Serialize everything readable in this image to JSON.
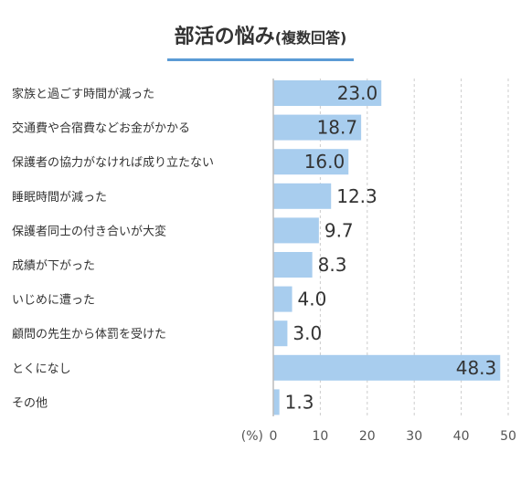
{
  "chart_data": {
    "type": "bar",
    "orientation": "horizontal",
    "title": "部活の悩み",
    "subtitle": "(複数回答)",
    "unit_label": "(%)",
    "categories": [
      "家族と過ごす時間が減った",
      "交通費や合宿費などお金がかかる",
      "保護者の協力がなければ成り立たない",
      "睡眠時間が減った",
      "保護者同士の付き合いが大変",
      "成績が下がった",
      "いじめに遭った",
      "顧問の先生から体罰を受けた",
      "とくになし",
      "その他"
    ],
    "values": [
      23.0,
      18.7,
      16.0,
      12.3,
      9.7,
      8.3,
      4.0,
      3.0,
      48.3,
      1.3
    ],
    "value_labels": [
      "23.0",
      "18.7",
      "16.0",
      "12.3",
      "9.7",
      "8.3",
      "4.0",
      "3.0",
      "48.3",
      "1.3"
    ],
    "xlim": [
      0,
      50
    ],
    "ticks": [
      "0",
      "10",
      "20",
      "30",
      "40",
      "50"
    ],
    "grid": true,
    "bar_color": "#a8cdee",
    "axis_color": "#bbbbbb",
    "grid_color": "#cccccc"
  }
}
